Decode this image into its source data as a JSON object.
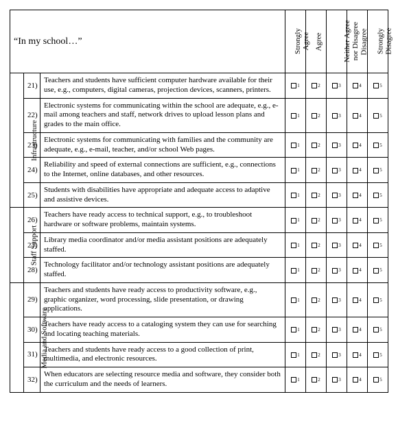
{
  "header": {
    "prompt": "“In my school…”",
    "scale": [
      "Strongly<br>Agree",
      "Agree",
      "Neither Agree<br>nor Disagree",
      "Disagree",
      "Strongly<br>Disagree"
    ]
  },
  "categories": [
    {
      "name": "Infrastructure",
      "questions": [
        {
          "n": "21)",
          "t": "Teachers and students have sufficient computer hardware available for their use, e.g., computers, digital cameras, projection devices, scanners, printers."
        },
        {
          "n": "22)",
          "t": "Electronic systems for communicating within the school are adequate, e.g., e-mail among teachers and staff, network drives to upload lesson plans and grades to the main office."
        },
        {
          "n": "23)",
          "t": "Electronic systems for communicating with families and the community are adequate, e.g., e-mail, teacher, and/or school Web pages."
        },
        {
          "n": "24)",
          "t": "Reliability and speed of external connections are sufficient, e.g., connections to the Internet, online databases, and other resources."
        },
        {
          "n": "25)",
          "t": "Students with disabilities have appropriate and adequate access to adaptive and assistive devices."
        }
      ]
    },
    {
      "name": "Staff Support",
      "questions": [
        {
          "n": "26)",
          "t": "Teachers have ready access to technical support, e.g., to troubleshoot hardware or software problems, maintain systems."
        },
        {
          "n": "27)",
          "t": "Library media coordinator and/or media assistant positions are adequately staffed."
        },
        {
          "n": "28)",
          "t": "Technology facilitator and/or technology assistant positions are adequately staffed."
        }
      ]
    },
    {
      "name": "Media and Software",
      "questions": [
        {
          "n": "29)",
          "t": "Teachers and students have ready access to productivity software, e.g., graphic organizer, word processing, slide presentation, or drawing applications."
        },
        {
          "n": "30)",
          "t": "Teachers have ready access to a cataloging system they can use for searching and locating teaching materials."
        },
        {
          "n": "31)",
          "t": "Teachers and students have ready access to a good collection of print, multimedia, and electronic resources."
        },
        {
          "n": "32)",
          "t": "When educators are selecting resource media and software, they consider both the curriculum and the needs of learners."
        }
      ]
    }
  ],
  "option_labels": [
    "1",
    "2",
    "3",
    "4",
    "5"
  ]
}
